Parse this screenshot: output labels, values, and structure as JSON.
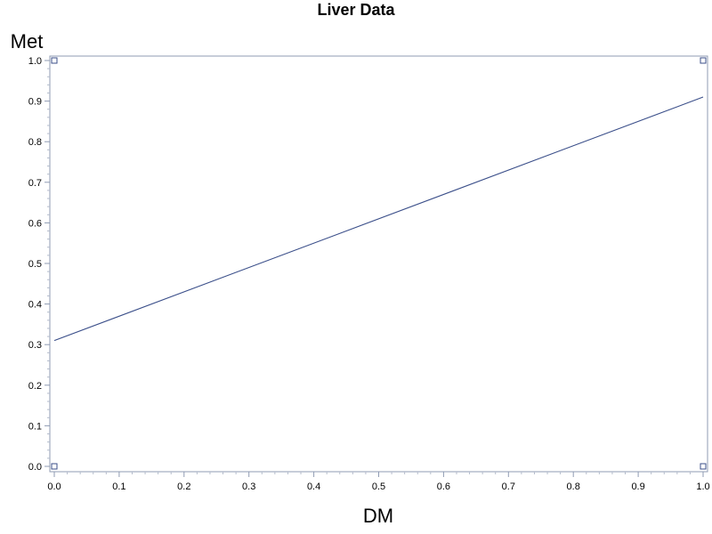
{
  "chart_data": {
    "type": "line",
    "title": "Liver Data",
    "xlabel": "DM",
    "ylabel": "Met",
    "xlim": [
      0,
      1
    ],
    "ylim": [
      0,
      1
    ],
    "xticks": [
      "0.0",
      "0.1",
      "0.2",
      "0.3",
      "0.4",
      "0.5",
      "0.6",
      "0.7",
      "0.8",
      "0.9",
      "1.0"
    ],
    "yticks": [
      "0.0",
      "0.1",
      "0.2",
      "0.3",
      "0.4",
      "0.5",
      "0.6",
      "0.7",
      "0.8",
      "0.9",
      "1.0"
    ],
    "grid": false,
    "series": [
      {
        "x": [
          0,
          1
        ],
        "y": [
          0.31,
          0.91
        ]
      }
    ],
    "markers": [
      {
        "x": 0,
        "y": 0
      },
      {
        "x": 0,
        "y": 1
      },
      {
        "x": 1,
        "y": 0
      },
      {
        "x": 1,
        "y": 1
      }
    ],
    "colors": {
      "line": "#3b4f8a",
      "marker": "#3b4f8a",
      "frame": "#8f9bb3"
    }
  }
}
